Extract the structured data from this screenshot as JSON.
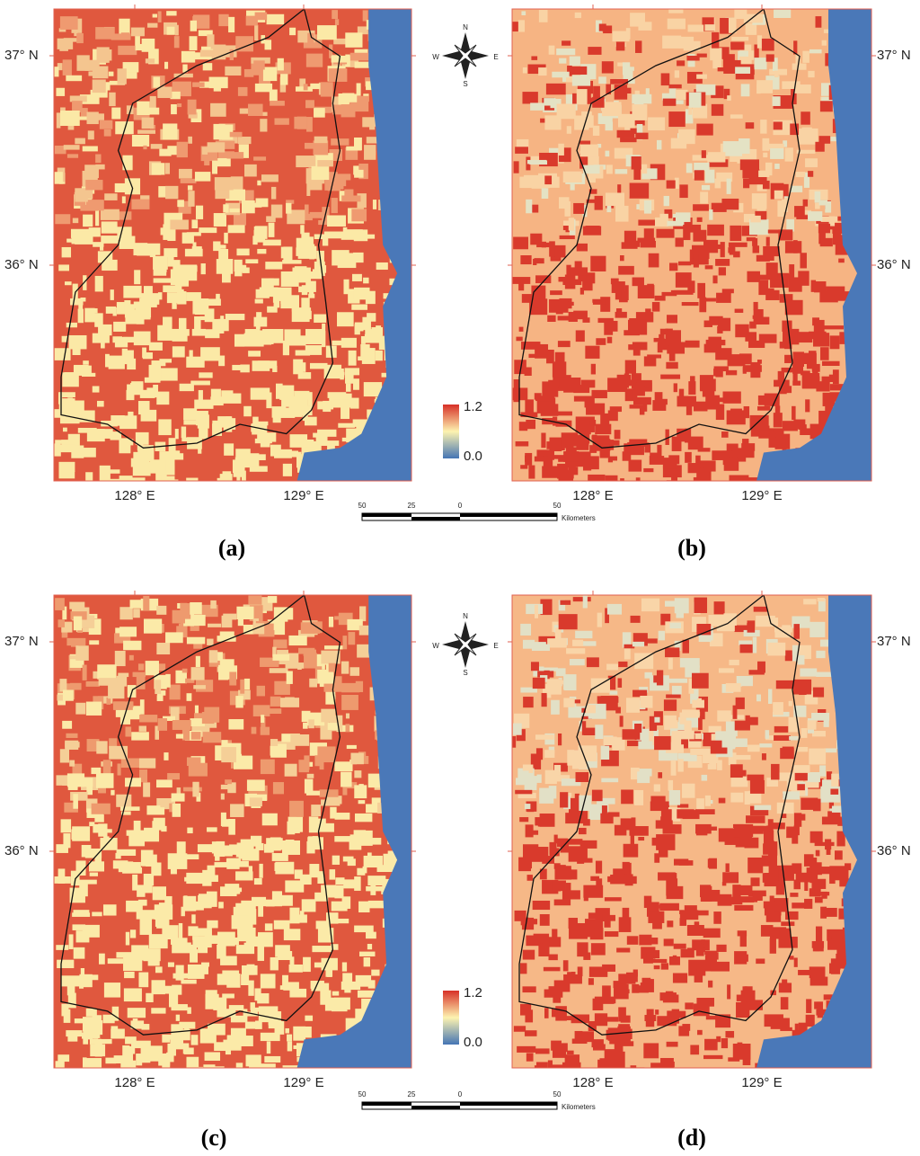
{
  "panels": [
    {
      "label": "(a)",
      "lat_labels": [
        "37° N",
        "36° N"
      ],
      "lon_labels": [
        "128° E",
        "129° E"
      ],
      "legend": {
        "max": "1.2",
        "min": "0.0"
      }
    },
    {
      "label": "(b)",
      "lat_labels": [
        "37° N",
        "36° N"
      ],
      "lon_labels": [
        "128° E",
        "129° E"
      ]
    },
    {
      "label": "(c)",
      "lat_labels": [
        "37° N",
        "36° N"
      ],
      "lon_labels": [
        "128° E",
        "129° E"
      ],
      "legend": {
        "max": "1.2",
        "min": "0.0"
      }
    },
    {
      "label": "(d)",
      "lat_labels": [
        "37° N",
        "36° N"
      ],
      "lon_labels": [
        "128° E",
        "129° E"
      ]
    }
  ],
  "compasses": [
    {
      "north": "N",
      "south": "S",
      "west": "W",
      "east": "E"
    },
    {
      "north": "N",
      "south": "S",
      "west": "W",
      "east": "E"
    }
  ],
  "scale_bars": [
    {
      "ticks": [
        "50",
        "25",
        "0",
        "50"
      ],
      "unit": "Kilometers"
    },
    {
      "ticks": [
        "50",
        "25",
        "0",
        "50"
      ],
      "unit": "Kilometers"
    }
  ]
}
